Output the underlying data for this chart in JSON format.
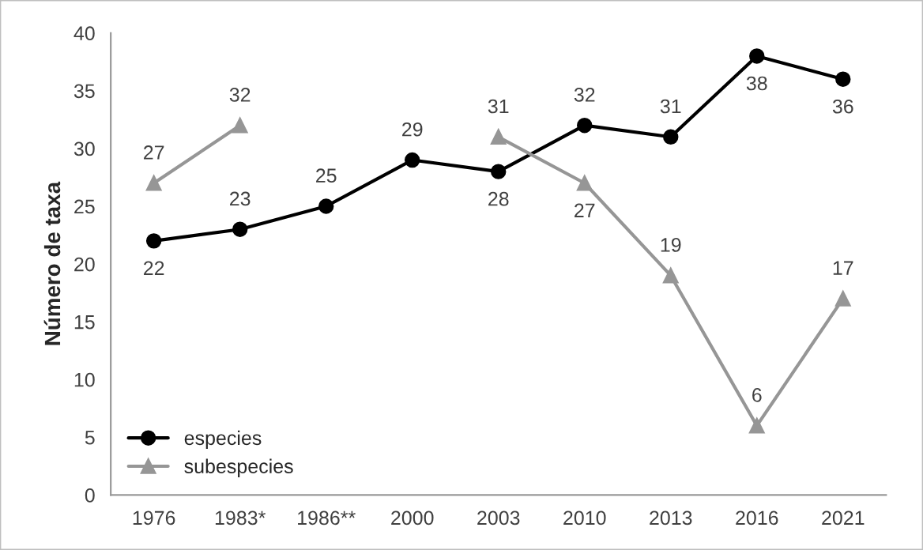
{
  "chart_data": {
    "type": "line",
    "ylabel": "Número de taxa",
    "categories": [
      "1976",
      "1983*",
      "1986**",
      "2000",
      "2003",
      "2010",
      "2013",
      "2016",
      "2021"
    ],
    "series": [
      {
        "name": "especies",
        "color": "#000000",
        "marker": "circle",
        "values": [
          22,
          23,
          25,
          29,
          28,
          32,
          31,
          38,
          36
        ]
      },
      {
        "name": "subespecies",
        "color": "#969696",
        "marker": "triangle",
        "values": [
          27,
          32,
          null,
          null,
          31,
          27,
          19,
          6,
          17
        ]
      }
    ],
    "ylim": [
      0,
      40
    ],
    "yticks": [
      0,
      5,
      10,
      15,
      20,
      25,
      30,
      35,
      40
    ],
    "grid": false,
    "legend": "bottom left",
    "data_labels": true,
    "line_style": "solid"
  }
}
